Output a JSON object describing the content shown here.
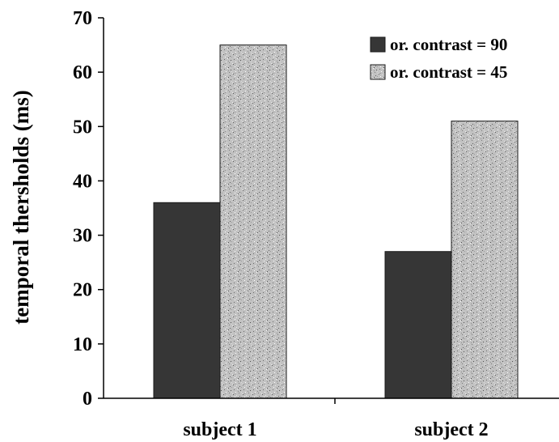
{
  "chart_data": {
    "type": "bar",
    "title": "",
    "xlabel": "",
    "ylabel": "temporal thersholds (ms)",
    "ylim": [
      0,
      70
    ],
    "yticks": [
      0,
      10,
      20,
      30,
      40,
      50,
      60,
      70
    ],
    "categories": [
      "subject 1",
      "subject 2"
    ],
    "series": [
      {
        "name": "or. contrast = 90",
        "values": [
          36,
          27
        ],
        "color": "#363636",
        "fill": "solid"
      },
      {
        "name": "or. contrast = 45",
        "values": [
          65,
          51
        ],
        "color": "#b4b4b4",
        "fill": "speckled"
      }
    ],
    "legend": "top-right",
    "grid": false
  }
}
